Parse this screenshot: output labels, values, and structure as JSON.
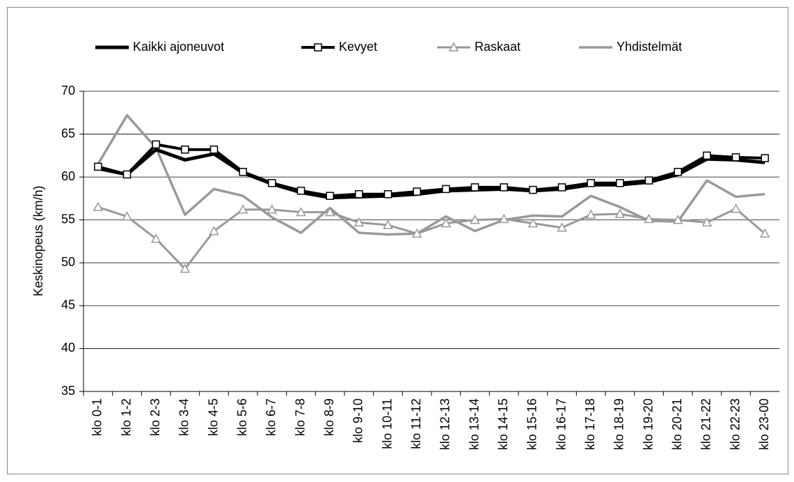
{
  "chart_data": {
    "type": "line",
    "y_label": "Keskinopeus (km/h)",
    "categories": [
      "klo 0-1",
      "klo 1-2",
      "klo 2-3",
      "klo 3-4",
      "klo 4-5",
      "klo 5-6",
      "klo 6-7",
      "klo 7-8",
      "klo 8-9",
      "klo 9-10",
      "klo 10-11",
      "klo 11-12",
      "klo 12-13",
      "klo 13-14",
      "klo 14-15",
      "klo 15-16",
      "klo 16-17",
      "klo 17-18",
      "klo 18-19",
      "klo 19-20",
      "klo 20-21",
      "klo 21-22",
      "klo 22-23",
      "klo 23-00"
    ],
    "series": [
      {
        "name": "Kaikki ajoneuvot",
        "color": "#000000",
        "marker": "none",
        "values": [
          61.0,
          60.3,
          63.2,
          62.0,
          62.7,
          60.5,
          59.2,
          58.2,
          57.6,
          57.7,
          57.8,
          58.0,
          58.4,
          58.5,
          58.6,
          58.4,
          58.6,
          59.1,
          59.1,
          59.4,
          60.3,
          62.1,
          62.0,
          61.7
        ]
      },
      {
        "name": "Kevyet",
        "color": "#000000",
        "marker": "square",
        "values": [
          61.2,
          60.3,
          63.8,
          63.2,
          63.2,
          60.6,
          59.3,
          58.4,
          57.8,
          58.0,
          58.0,
          58.3,
          58.6,
          58.8,
          58.8,
          58.5,
          58.8,
          59.3,
          59.3,
          59.6,
          60.6,
          62.5,
          62.3,
          62.2
        ]
      },
      {
        "name": "Raskaat",
        "color": "#999999",
        "marker": "triangle",
        "values": [
          56.5,
          55.4,
          52.8,
          49.3,
          53.7,
          56.2,
          56.2,
          55.9,
          55.9,
          54.7,
          54.4,
          53.4,
          54.6,
          55.0,
          55.1,
          54.6,
          54.1,
          55.6,
          55.7,
          55.1,
          55.0,
          54.7,
          56.3,
          53.4
        ]
      },
      {
        "name": "Yhdistelmät",
        "color": "#999999",
        "marker": "none",
        "values": [
          61.5,
          67.2,
          63.4,
          55.6,
          58.6,
          57.8,
          55.3,
          53.5,
          56.4,
          53.5,
          53.3,
          53.4,
          55.4,
          53.7,
          55.0,
          55.5,
          55.4,
          57.8,
          56.5,
          54.9,
          54.8,
          59.6,
          57.7,
          58.0
        ]
      }
    ],
    "ylim": [
      35,
      70
    ],
    "yticks": [
      35,
      40,
      45,
      50,
      55,
      60,
      65,
      70
    ],
    "grid": true,
    "legend": "top"
  }
}
